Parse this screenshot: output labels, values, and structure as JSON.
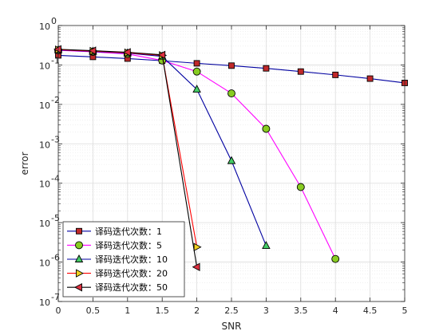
{
  "chart_data": {
    "type": "line",
    "title": "",
    "xlabel": "SNR",
    "ylabel": "error",
    "xlim": [
      0,
      5
    ],
    "ylim": [
      1e-07,
      1
    ],
    "yscale": "log",
    "grid": true,
    "legend_position": "bottom-left",
    "x_ticks": [
      "0",
      "0.5",
      "1",
      "1.5",
      "2",
      "2.5",
      "3",
      "3.5",
      "4",
      "4.5",
      "5"
    ],
    "y_tick_labels": [
      {
        "base": "10",
        "exp": "0"
      },
      {
        "base": "10",
        "exp": "-1"
      },
      {
        "base": "10",
        "exp": "-2"
      },
      {
        "base": "10",
        "exp": "-3"
      },
      {
        "base": "10",
        "exp": "-4"
      },
      {
        "base": "10",
        "exp": "-5"
      },
      {
        "base": "10",
        "exp": "-6"
      },
      {
        "base": "10",
        "exp": "-7"
      }
    ],
    "series": [
      {
        "name": "译码迭代次数：1",
        "line_color": "#0000a0",
        "marker": "square",
        "marker_fill": "#c0282a",
        "x": [
          0,
          0.5,
          1,
          1.5,
          2,
          2.5,
          3,
          3.5,
          4,
          4.5,
          5
        ],
        "y": [
          0.175,
          0.16,
          0.145,
          0.128,
          0.11,
          0.096,
          0.082,
          0.068,
          0.056,
          0.045,
          0.035
        ]
      },
      {
        "name": "译码迭代次数：5",
        "line_color": "#ff00ff",
        "marker": "circle",
        "marker_fill": "#88cc22",
        "x": [
          0,
          0.5,
          1,
          1.5,
          2,
          2.5,
          3,
          3.5,
          4
        ],
        "y": [
          0.235,
          0.215,
          0.19,
          0.13,
          0.068,
          0.019,
          0.0024,
          8e-05,
          1.2e-06
        ]
      },
      {
        "name": "译码迭代次数：10",
        "line_color": "#0000a0",
        "marker": "triangle-up",
        "marker_fill": "#44cc66",
        "x": [
          0,
          0.5,
          1,
          1.5,
          2,
          2.5,
          3
        ],
        "y": [
          0.24,
          0.22,
          0.2,
          0.165,
          0.024,
          0.00037,
          2.6e-06
        ]
      },
      {
        "name": "译码迭代次数：20",
        "line_color": "#ff0000",
        "marker": "triangle-right",
        "marker_fill": "#f0d020",
        "x": [
          0,
          0.5,
          1,
          1.5,
          2
        ],
        "y": [
          0.245,
          0.225,
          0.205,
          0.175,
          2.4e-06
        ]
      },
      {
        "name": "译码迭代次数：50",
        "line_color": "#000000",
        "marker": "triangle-left",
        "marker_fill": "#e03040",
        "x": [
          0,
          0.5,
          1,
          1.5,
          2
        ],
        "y": [
          0.25,
          0.23,
          0.21,
          0.18,
          7.5e-07
        ]
      }
    ]
  }
}
